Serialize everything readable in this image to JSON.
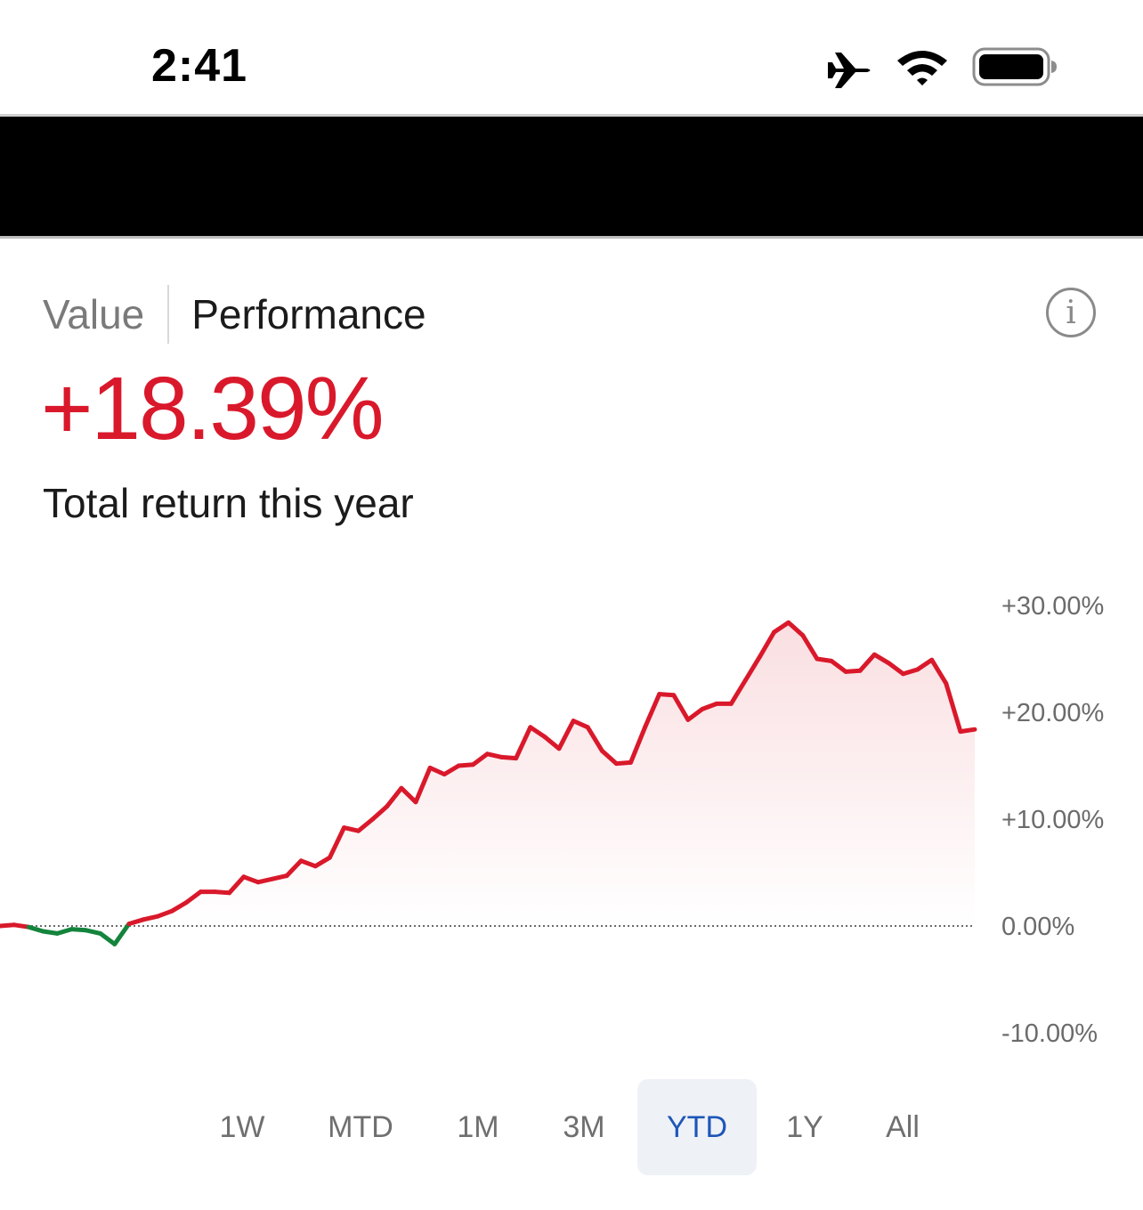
{
  "status_bar": {
    "time": "2:41",
    "icons": [
      "airplane-icon",
      "wifi-icon",
      "battery-icon"
    ]
  },
  "header": {
    "redacted": true
  },
  "toggle": {
    "value_label": "Value",
    "performance_label": "Performance",
    "selected": "Performance"
  },
  "info_icon": "info-icon",
  "summary": {
    "return_value": "+18.39%",
    "caption": "Total return this year"
  },
  "colors": {
    "positive": "#d9192b",
    "negative": "#14843c",
    "accent": "#1d56b8",
    "active_tab_bg": "#eef1f6"
  },
  "chart_data": {
    "type": "line",
    "ylim": [
      -10,
      30
    ],
    "y_ticks": [
      "+30.00%",
      "+20.00%",
      "+10.00%",
      "0.00%",
      "-10.00%"
    ],
    "y_tick_values": [
      30,
      20,
      10,
      0,
      -10
    ],
    "baseline": 0,
    "baseline_style": "dotted",
    "fill_under": true,
    "series": [
      {
        "values": [
          0,
          0.1,
          -0.1,
          -0.5,
          -0.7,
          -0.3,
          -0.4,
          -0.7,
          -1.7,
          0.2,
          0.6,
          0.9,
          1.4,
          2.2,
          3.2,
          3.2,
          3.1,
          4.6,
          4.1,
          4.4,
          4.7,
          6.1,
          5.6,
          6.4,
          9.2,
          8.9,
          10.0,
          11.2,
          12.9,
          11.6,
          14.8,
          14.2,
          15.0,
          15.1,
          16.1,
          15.8,
          15.7,
          18.6,
          17.7,
          16.6,
          19.2,
          18.6,
          16.4,
          15.2,
          15.3,
          18.6,
          21.7,
          21.6,
          19.3,
          20.3,
          20.8,
          20.8,
          23.0,
          25.2,
          27.5,
          28.4,
          27.2,
          25.0,
          24.8,
          23.8,
          23.9,
          25.4,
          24.6,
          23.6,
          24.0,
          24.9,
          22.7,
          18.2,
          18.4
        ]
      }
    ]
  },
  "range_tabs": {
    "items": [
      "1W",
      "MTD",
      "1M",
      "3M",
      "YTD",
      "1Y",
      "All"
    ],
    "active": "YTD"
  }
}
